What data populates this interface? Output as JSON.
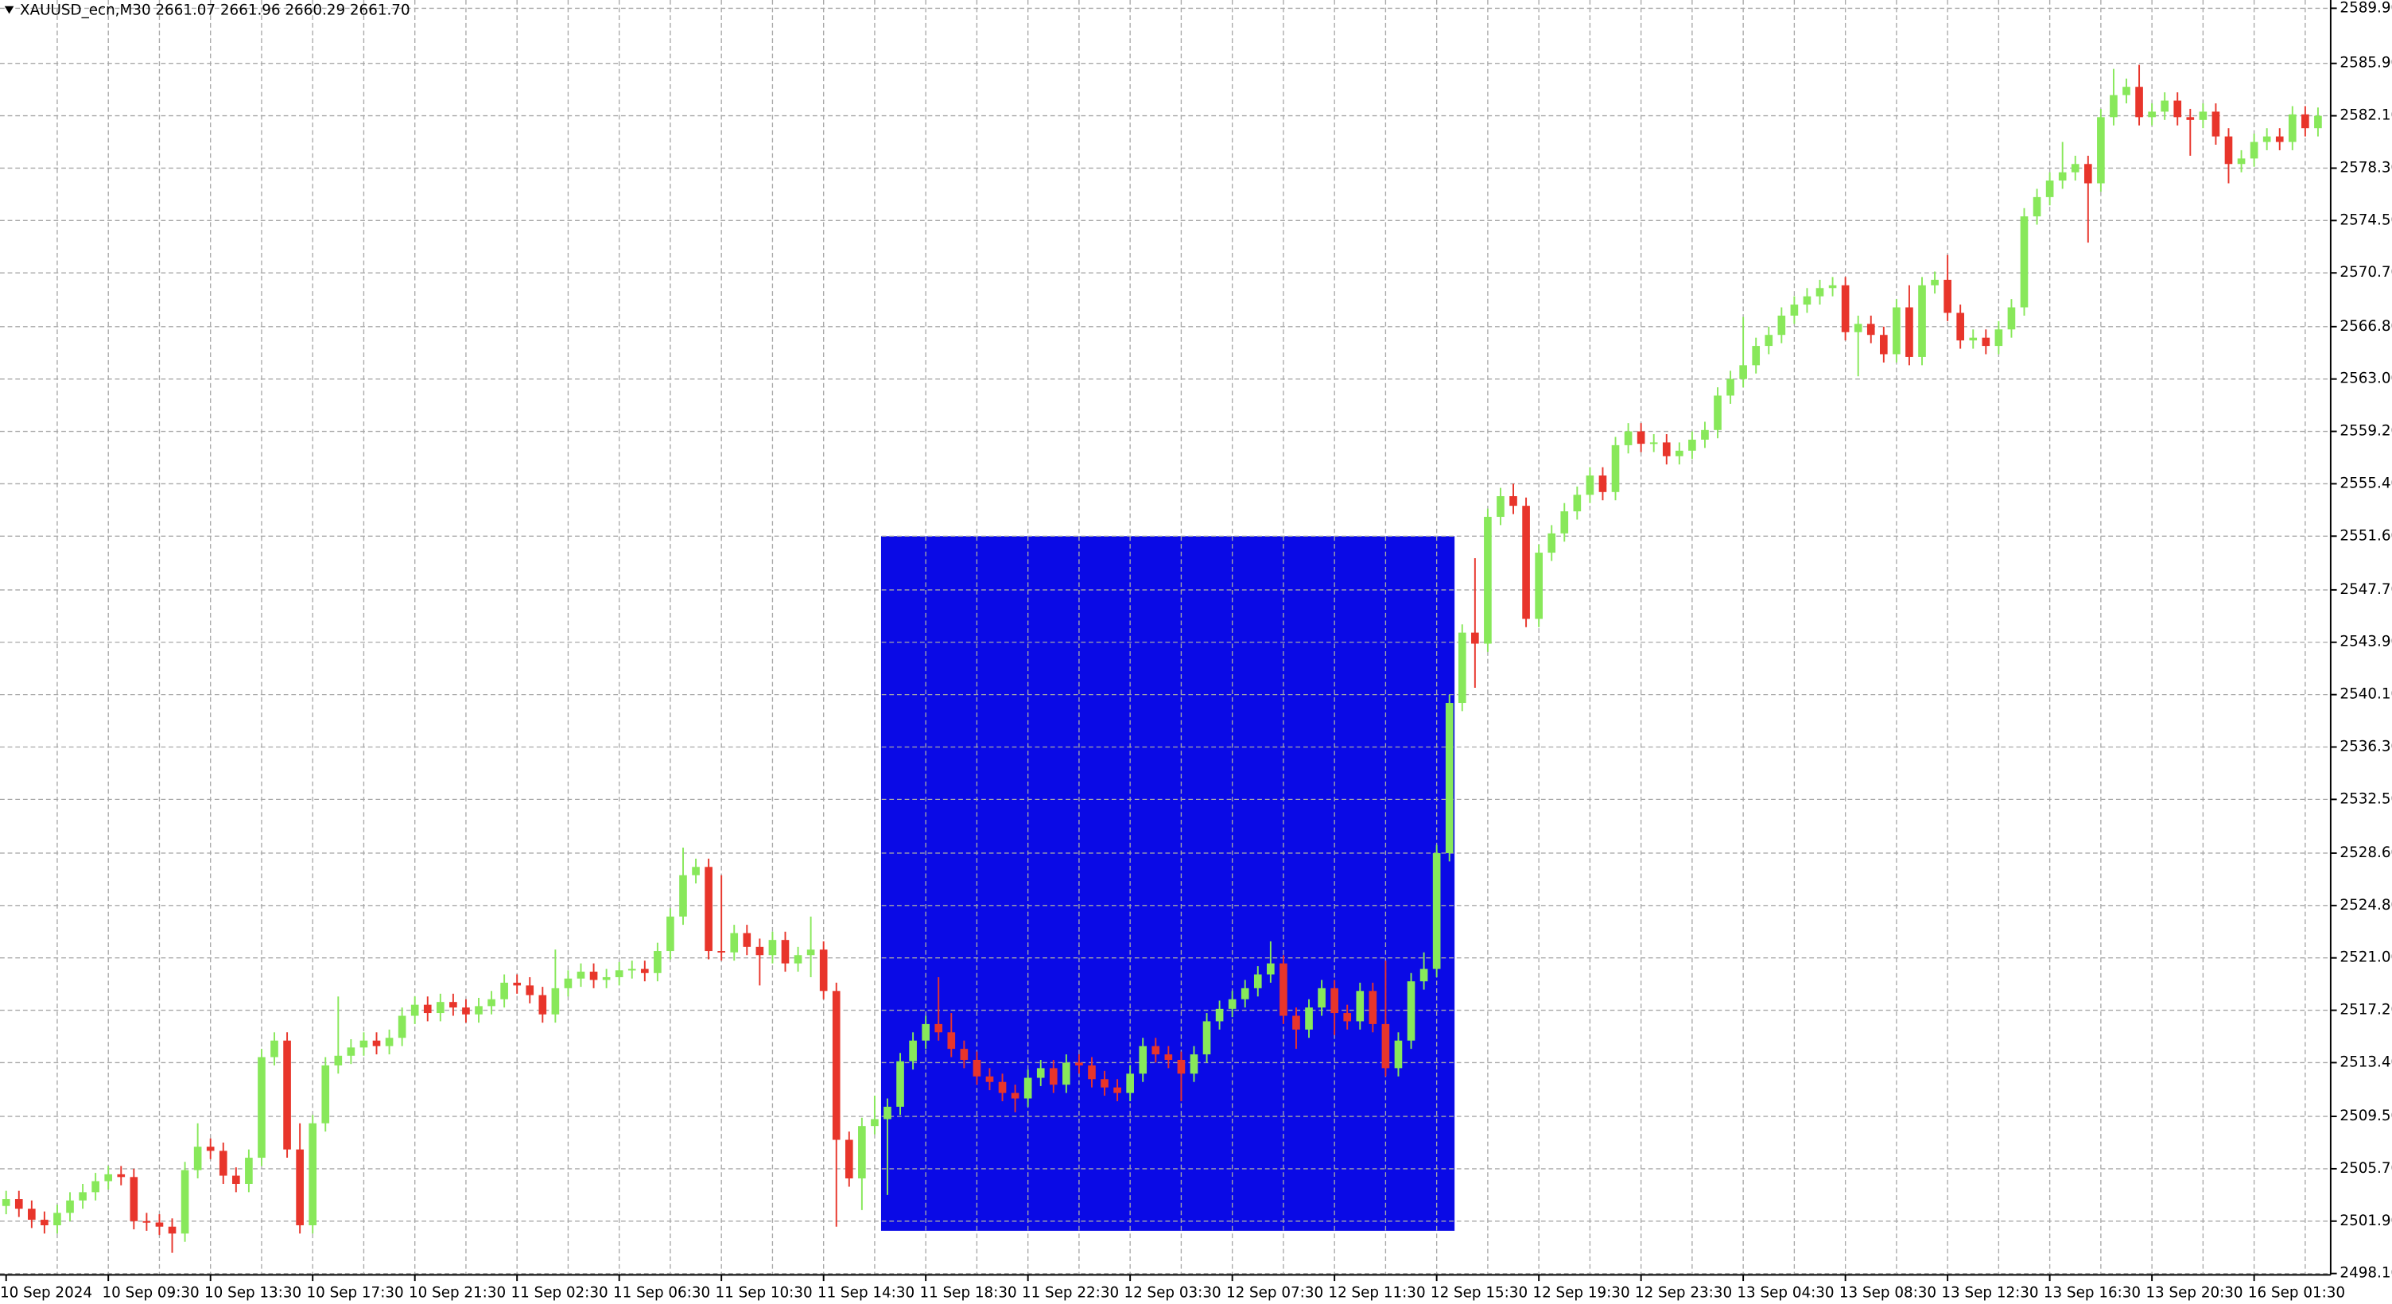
{
  "chart_data": {
    "type": "candlestick",
    "title": "XAUUSD_ecn,M30  2661.07 2661.96 2660.29 2661.70",
    "up_color": "#88e85a",
    "down_color": "#e8352b",
    "grid": true,
    "ylim": [
      2498.0,
      2590.5
    ],
    "yticks": [
      {
        "value": 2589.9,
        "label": "2589.90"
      },
      {
        "value": 2585.9,
        "label": "2585.90"
      },
      {
        "value": 2582.1,
        "label": "2582.10"
      },
      {
        "value": 2578.3,
        "label": "2578.30"
      },
      {
        "value": 2574.5,
        "label": "2574.50"
      },
      {
        "value": 2570.7,
        "label": "2570.70"
      },
      {
        "value": 2566.8,
        "label": "2566.80"
      },
      {
        "value": 2563.0,
        "label": "2563.00"
      },
      {
        "value": 2559.2,
        "label": "2559.20"
      },
      {
        "value": 2555.4,
        "label": "2555.40"
      },
      {
        "value": 2551.6,
        "label": "2551.60"
      },
      {
        "value": 2547.7,
        "label": "2547.70"
      },
      {
        "value": 2543.9,
        "label": "2543.90"
      },
      {
        "value": 2540.1,
        "label": "2540.10"
      },
      {
        "value": 2536.3,
        "label": "2536.30"
      },
      {
        "value": 2532.5,
        "label": "2532.50"
      },
      {
        "value": 2528.6,
        "label": "2528.60"
      },
      {
        "value": 2524.8,
        "label": "2524.80"
      },
      {
        "value": 2521.0,
        "label": "2521.00"
      },
      {
        "value": 2517.2,
        "label": "2517.20"
      },
      {
        "value": 2513.4,
        "label": "2513.40"
      },
      {
        "value": 2509.5,
        "label": "2509.50"
      },
      {
        "value": 2505.7,
        "label": "2505.70"
      },
      {
        "value": 2501.9,
        "label": "2501.90"
      },
      {
        "value": 2498.1,
        "label": "2498.10"
      }
    ],
    "rectangle": {
      "color": "#0a0ae6",
      "price_high": 2551.6,
      "price_low": 2501.2
    },
    "categories": [
      "10 Sep 2024",
      null,
      null,
      null,
      null,
      null,
      null,
      null,
      "10 Sep 09:30",
      null,
      null,
      null,
      null,
      null,
      null,
      null,
      "10 Sep 13:30",
      null,
      null,
      null,
      null,
      null,
      null,
      null,
      "10 Sep 17:30",
      null,
      null,
      null,
      null,
      null,
      null,
      null,
      "10 Sep 21:30",
      null,
      null,
      null,
      null,
      null,
      null,
      null,
      "11 Sep 02:30",
      null,
      null,
      null,
      null,
      null,
      null,
      null,
      "11 Sep 06:30",
      null,
      null,
      null,
      null,
      null,
      null,
      null,
      "11 Sep 10:30",
      null,
      null,
      null,
      null,
      null,
      null,
      null,
      "11 Sep 14:30",
      null,
      null,
      null,
      null,
      null,
      null,
      null,
      "11 Sep 18:30",
      null,
      null,
      null,
      null,
      null,
      null,
      null,
      "11 Sep 22:30",
      null,
      null,
      null,
      null,
      null,
      null,
      null,
      "12 Sep 03:30",
      null,
      null,
      null,
      null,
      null,
      null,
      null,
      "12 Sep 07:30",
      null,
      null,
      null,
      null,
      null,
      null,
      null,
      "12 Sep 11:30",
      null,
      null,
      null,
      null,
      null,
      null,
      null,
      "12 Sep 15:30",
      null,
      null,
      null,
      null,
      null,
      null,
      null,
      "12 Sep 19:30",
      null,
      null,
      null,
      null,
      null,
      null,
      null,
      "12 Sep 23:30",
      null,
      null,
      null,
      null,
      null,
      null,
      null,
      "13 Sep 04:30",
      null,
      null,
      null,
      null,
      null,
      null,
      null,
      "13 Sep 08:30",
      null,
      null,
      null,
      null,
      null,
      null,
      null,
      "13 Sep 12:30",
      null,
      null,
      null,
      null,
      null,
      null,
      null,
      "13 Sep 16:30",
      null,
      null,
      null,
      null,
      null,
      null,
      null,
      "13 Sep 20:30",
      null,
      null,
      null,
      null,
      null,
      null,
      null,
      "16 Sep 01:30",
      null,
      null,
      null,
      null,
      null
    ],
    "open": [
      2503.0,
      2503.5,
      2502.8,
      2502.0,
      2501.6,
      2502.5,
      2503.4,
      2504.0,
      2504.8,
      2505.3,
      2505.1,
      2501.9,
      2501.8,
      2501.5,
      2501.0,
      2505.6,
      2507.3,
      2507.0,
      2505.2,
      2504.6,
      2506.5,
      2513.8,
      2515.0,
      2507.1,
      2501.6,
      2509.0,
      2513.2,
      2513.9,
      2514.5,
      2515.0,
      2514.6,
      2515.2,
      2516.8,
      2517.6,
      2517.0,
      2517.8,
      2517.4,
      2516.9,
      2517.5,
      2518.0,
      2519.2,
      2519.0,
      2518.3,
      2516.9,
      2518.8,
      2519.5,
      2520.0,
      2519.4,
      2519.6,
      2520.1,
      2520.2,
      2519.9,
      2521.5,
      2524.0,
      2527.0,
      2527.6,
      2521.5,
      2521.4,
      2522.8,
      2521.8,
      2521.2,
      2522.3,
      2520.6,
      2521.2,
      2521.6,
      2518.6,
      2507.8,
      2505.0,
      2508.8,
      2509.3,
      2510.2,
      2513.5,
      2515.0,
      2516.2,
      2515.6,
      2514.4,
      2513.6,
      2512.4,
      2512.0,
      2511.2,
      2510.8,
      2512.3,
      2513.0,
      2511.8,
      2513.4,
      2513.2,
      2512.2,
      2511.6,
      2511.2,
      2512.6,
      2514.6,
      2514.0,
      2513.6,
      2512.6,
      2514.0,
      2516.4,
      2517.3,
      2518.0,
      2518.8,
      2519.8,
      2520.6,
      2516.8,
      2515.8,
      2517.4,
      2518.8,
      2517.0,
      2516.4,
      2518.6,
      2516.2,
      2513.0,
      2515.0,
      2519.3,
      2520.2,
      2528.6,
      2539.5,
      2544.6,
      2543.8,
      2553.0,
      2554.5,
      2553.8,
      2545.6,
      2550.4,
      2551.8,
      2553.4,
      2554.6,
      2556.0,
      2554.8,
      2558.2,
      2559.2,
      2558.3,
      2558.4,
      2557.4,
      2557.8,
      2558.6,
      2559.3,
      2561.8,
      2563.0,
      2564.0,
      2565.4,
      2566.2,
      2567.6,
      2568.4,
      2569.0,
      2569.6,
      2569.8,
      2566.4,
      2567.0,
      2566.2,
      2564.8,
      2568.2,
      2564.6,
      2569.8,
      2570.2,
      2567.8,
      2565.8,
      2566.0,
      2565.4,
      2566.6,
      2568.2,
      2574.8,
      2576.2,
      2577.4,
      2578.0,
      2578.6,
      2577.2,
      2582.0,
      2583.6,
      2584.2,
      2582.0,
      2582.4,
      2583.2,
      2582.0,
      2581.8,
      2582.4,
      2580.6,
      2578.6,
      2579.0,
      2580.2,
      2580.6,
      2580.2,
      2582.2,
      2581.2
    ],
    "high": [
      2504.1,
      2504.1,
      2503.4,
      2502.6,
      2503.1,
      2504.0,
      2504.6,
      2505.4,
      2505.9,
      2505.9,
      2505.7,
      2502.5,
      2502.4,
      2502.1,
      2506.2,
      2509.0,
      2507.9,
      2507.6,
      2505.8,
      2507.1,
      2514.4,
      2515.6,
      2515.6,
      2509.0,
      2509.6,
      2513.8,
      2518.2,
      2515.1,
      2515.6,
      2515.6,
      2515.8,
      2517.4,
      2518.2,
      2518.2,
      2518.4,
      2518.4,
      2518.0,
      2518.1,
      2518.6,
      2519.8,
      2519.8,
      2519.6,
      2518.9,
      2521.6,
      2520.1,
      2520.6,
      2520.6,
      2520.2,
      2520.7,
      2520.8,
      2520.8,
      2522.1,
      2524.6,
      2529.0,
      2528.2,
      2528.2,
      2527.0,
      2523.4,
      2523.4,
      2522.4,
      2522.9,
      2522.9,
      2521.8,
      2524.0,
      2522.2,
      2519.2,
      2508.4,
      2509.4,
      2511.0,
      2510.8,
      2514.1,
      2515.6,
      2516.8,
      2519.6,
      2517.0,
      2515.0,
      2514.2,
      2513.0,
      2512.6,
      2511.8,
      2512.9,
      2513.6,
      2513.6,
      2514.0,
      2514.0,
      2513.8,
      2512.8,
      2512.2,
      2513.2,
      2515.2,
      2515.2,
      2514.6,
      2514.2,
      2514.6,
      2517.0,
      2517.9,
      2518.6,
      2519.4,
      2520.4,
      2522.2,
      2521.2,
      2517.4,
      2518.0,
      2519.4,
      2519.4,
      2517.6,
      2519.2,
      2519.2,
      2520.8,
      2515.6,
      2519.9,
      2521.4,
      2529.2,
      2540.1,
      2545.2,
      2550.0,
      2553.6,
      2555.1,
      2555.4,
      2554.4,
      2551.0,
      2552.4,
      2554.0,
      2555.2,
      2556.6,
      2556.6,
      2558.8,
      2559.8,
      2559.8,
      2559.0,
      2559.0,
      2558.4,
      2559.2,
      2559.9,
      2562.4,
      2563.6,
      2567.5,
      2566.0,
      2566.8,
      2568.2,
      2569.0,
      2569.6,
      2570.2,
      2570.4,
      2570.4,
      2567.6,
      2567.6,
      2566.8,
      2568.8,
      2569.8,
      2570.4,
      2570.8,
      2572.0,
      2568.4,
      2566.6,
      2566.6,
      2567.2,
      2568.8,
      2575.4,
      2576.8,
      2578.0,
      2580.2,
      2579.2,
      2579.2,
      2582.6,
      2585.5,
      2584.8,
      2585.8,
      2583.0,
      2583.8,
      2583.8,
      2582.6,
      2583.0,
      2583.0,
      2581.2,
      2579.6,
      2580.8,
      2581.2,
      2581.2,
      2582.8,
      2582.8,
      2582.7
    ],
    "low": [
      2502.4,
      2502.2,
      2501.4,
      2501.0,
      2501.0,
      2501.9,
      2502.8,
      2503.4,
      2504.2,
      2504.5,
      2501.3,
      2501.2,
      2500.9,
      2499.6,
      2500.4,
      2505.0,
      2506.4,
      2504.6,
      2504.0,
      2504.0,
      2505.9,
      2513.2,
      2506.5,
      2501.0,
      2501.0,
      2508.4,
      2512.6,
      2513.3,
      2513.9,
      2514.0,
      2514.0,
      2514.6,
      2516.2,
      2516.4,
      2516.4,
      2516.8,
      2516.3,
      2516.3,
      2516.9,
      2517.4,
      2518.4,
      2517.7,
      2516.3,
      2516.3,
      2518.2,
      2518.9,
      2518.8,
      2518.8,
      2519.0,
      2519.5,
      2519.3,
      2519.3,
      2520.9,
      2523.4,
      2526.4,
      2520.9,
      2520.8,
      2520.8,
      2521.2,
      2519.0,
      2520.6,
      2520.0,
      2520.0,
      2519.6,
      2518.0,
      2501.5,
      2504.4,
      2502.7,
      2508.2,
      2503.8,
      2509.6,
      2512.9,
      2514.4,
      2515.0,
      2513.8,
      2513.0,
      2511.8,
      2511.4,
      2510.6,
      2509.8,
      2510.2,
      2511.7,
      2511.2,
      2511.2,
      2512.6,
      2511.6,
      2511.0,
      2510.6,
      2510.6,
      2512.0,
      2513.4,
      2513.0,
      2510.6,
      2512.0,
      2513.4,
      2515.8,
      2516.7,
      2517.4,
      2518.2,
      2519.2,
      2516.2,
      2514.4,
      2515.2,
      2516.8,
      2515.4,
      2515.8,
      2515.8,
      2515.6,
      2512.4,
      2512.4,
      2514.4,
      2518.7,
      2519.6,
      2528.0,
      2538.9,
      2540.6,
      2543.2,
      2552.4,
      2553.2,
      2545.0,
      2545.0,
      2549.8,
      2551.2,
      2552.8,
      2554.0,
      2554.2,
      2554.2,
      2557.6,
      2557.7,
      2557.7,
      2556.8,
      2556.8,
      2557.2,
      2558.0,
      2558.7,
      2561.2,
      2562.4,
      2563.4,
      2564.8,
      2565.6,
      2567.0,
      2567.8,
      2568.4,
      2569.0,
      2565.8,
      2563.2,
      2565.6,
      2564.2,
      2564.2,
      2564.0,
      2564.0,
      2569.2,
      2567.2,
      2565.2,
      2565.2,
      2564.8,
      2564.8,
      2566.0,
      2567.6,
      2574.2,
      2575.6,
      2576.8,
      2577.4,
      2572.9,
      2576.6,
      2581.4,
      2583.0,
      2581.4,
      2581.4,
      2581.8,
      2581.4,
      2579.2,
      2581.2,
      2580.0,
      2577.2,
      2578.0,
      2578.4,
      2579.6,
      2579.6,
      2579.6,
      2580.6,
      2580.6
    ],
    "close": [
      2503.5,
      2502.8,
      2502.0,
      2501.6,
      2502.5,
      2503.4,
      2504.0,
      2504.8,
      2505.3,
      2505.1,
      2501.9,
      2501.8,
      2501.5,
      2501.0,
      2505.6,
      2507.3,
      2507.0,
      2505.2,
      2504.6,
      2506.5,
      2513.8,
      2515.0,
      2507.1,
      2501.6,
      2509.0,
      2513.2,
      2513.9,
      2514.5,
      2515.0,
      2514.6,
      2515.2,
      2516.8,
      2517.6,
      2517.0,
      2517.8,
      2517.4,
      2516.9,
      2517.5,
      2518.0,
      2519.2,
      2519.0,
      2518.3,
      2516.9,
      2518.8,
      2519.5,
      2520.0,
      2519.4,
      2519.6,
      2520.1,
      2520.2,
      2519.9,
      2521.5,
      2524.0,
      2527.0,
      2527.6,
      2521.5,
      2521.4,
      2522.8,
      2521.8,
      2521.2,
      2522.3,
      2520.6,
      2521.2,
      2521.6,
      2518.6,
      2507.8,
      2505.0,
      2508.8,
      2509.3,
      2510.2,
      2513.5,
      2515.0,
      2516.2,
      2515.6,
      2514.4,
      2513.6,
      2512.4,
      2512.0,
      2511.2,
      2510.8,
      2512.3,
      2513.0,
      2511.8,
      2513.4,
      2513.2,
      2512.2,
      2511.6,
      2511.2,
      2512.6,
      2514.6,
      2514.0,
      2513.6,
      2512.6,
      2514.0,
      2516.4,
      2517.3,
      2518.0,
      2518.8,
      2519.8,
      2520.6,
      2516.8,
      2515.8,
      2517.4,
      2518.8,
      2517.0,
      2516.4,
      2518.6,
      2516.2,
      2513.0,
      2515.0,
      2519.3,
      2520.2,
      2528.6,
      2539.5,
      2544.6,
      2543.8,
      2553.0,
      2554.5,
      2553.8,
      2545.6,
      2550.4,
      2551.8,
      2553.4,
      2554.6,
      2556.0,
      2554.8,
      2558.2,
      2559.2,
      2558.3,
      2558.4,
      2557.4,
      2557.8,
      2558.6,
      2559.3,
      2561.8,
      2563.0,
      2564.0,
      2565.4,
      2566.2,
      2567.6,
      2568.4,
      2569.0,
      2569.6,
      2569.8,
      2566.4,
      2567.0,
      2566.2,
      2564.8,
      2568.2,
      2564.6,
      2569.8,
      2570.2,
      2567.8,
      2565.8,
      2566.0,
      2565.4,
      2566.6,
      2568.2,
      2574.8,
      2576.2,
      2577.4,
      2578.0,
      2578.6,
      2577.2,
      2582.0,
      2583.6,
      2584.2,
      2582.0,
      2582.4,
      2583.2,
      2582.0,
      2581.8,
      2582.4,
      2580.6,
      2578.6,
      2579.0,
      2580.2,
      2580.6,
      2580.2,
      2582.2,
      2581.2,
      2582.1
    ]
  }
}
